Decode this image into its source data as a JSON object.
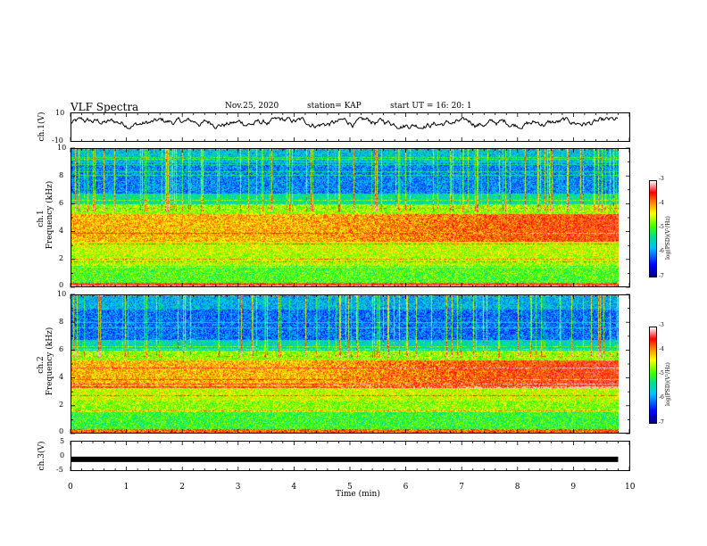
{
  "header": {
    "title": "VLF Spectra",
    "date": "Nov.25, 2020",
    "station": "station= KAP",
    "start_ut": "start  UT =   16: 20: 1"
  },
  "chart_data": [
    {
      "type": "line",
      "panel": "ch.1 waveform",
      "ylabel": "ch.1(V)",
      "ylim": [
        -10,
        10
      ],
      "ytick_labels": [
        "10",
        "-10"
      ],
      "xlim": [
        0,
        10
      ],
      "x_extent_min": 9.8,
      "approx_level": 3,
      "approx_swing": [
        -1,
        7
      ]
    },
    {
      "type": "heatmap",
      "panel": "ch.1 spectrogram",
      "ylabel_top": "ch.1",
      "ylabel": "Frequency (kHz)",
      "ylim": [
        0,
        10
      ],
      "ytick_labels": [
        "0",
        "2",
        "4",
        "6",
        "8",
        "10"
      ],
      "xlim": [
        0,
        10
      ],
      "x_extent_min": 9.8,
      "colorbar": {
        "label": "log(PSD)(V²/Hz)",
        "range": [
          -7,
          -3
        ],
        "tick_labels": [
          "-3",
          "-4",
          "-5",
          "-6",
          "-7"
        ]
      },
      "bands_log_psd": [
        {
          "f_khz": [
            0,
            0.3
          ],
          "value": -3.6
        },
        {
          "f_khz": [
            0.3,
            1.5
          ],
          "value": -4.9
        },
        {
          "f_khz": [
            1.5,
            2.4
          ],
          "value": -4.6
        },
        {
          "f_khz": [
            2.4,
            3.3
          ],
          "value": -4.5
        },
        {
          "f_khz": [
            3.3,
            5.3
          ],
          "value": -4.1,
          "late_value": -3.6
        },
        {
          "f_khz": [
            5.3,
            6.0
          ],
          "value": -4.7
        },
        {
          "f_khz": [
            6.0,
            6.8
          ],
          "value": -5.4
        },
        {
          "f_khz": [
            6.8,
            9.0
          ],
          "value": -6.0
        },
        {
          "f_khz": [
            9.0,
            10.0
          ],
          "value": -5.7
        }
      ]
    },
    {
      "type": "heatmap",
      "panel": "ch.2 spectrogram",
      "ylabel_top": "ch.2",
      "ylabel": "Frequency (kHz)",
      "ylim": [
        0,
        10
      ],
      "ytick_labels": [
        "0",
        "2",
        "4",
        "6",
        "8",
        "10"
      ],
      "xlim": [
        0,
        10
      ],
      "x_extent_min": 9.8,
      "colorbar": {
        "label": "log(PSD)(V²/Hz)",
        "range": [
          -7,
          -3
        ],
        "tick_labels": [
          "-3",
          "-4",
          "-5",
          "-6",
          "-7"
        ]
      },
      "bands_log_psd": [
        {
          "f_khz": [
            0,
            0.3
          ],
          "value": -3.8
        },
        {
          "f_khz": [
            0.3,
            1.5
          ],
          "value": -5.0
        },
        {
          "f_khz": [
            1.5,
            2.4
          ],
          "value": -4.7
        },
        {
          "f_khz": [
            2.4,
            3.3
          ],
          "value": -4.5
        },
        {
          "f_khz": [
            3.3,
            5.3
          ],
          "value": -4.1,
          "late_value": -3.5
        },
        {
          "f_khz": [
            5.3,
            6.0
          ],
          "value": -4.7
        },
        {
          "f_khz": [
            6.0,
            6.8
          ],
          "value": -5.5
        },
        {
          "f_khz": [
            6.8,
            9.0
          ],
          "value": -6.1
        },
        {
          "f_khz": [
            9.0,
            10.0
          ],
          "value": -5.8
        }
      ]
    },
    {
      "type": "line",
      "panel": "ch.3 waveform",
      "ylabel": "ch.3(V)",
      "ylim": [
        -5,
        5
      ],
      "ytick_labels": [
        "5",
        "0",
        "-5"
      ],
      "xlim": [
        0,
        10
      ],
      "x_extent_min": 9.8,
      "approx_level": -1.2,
      "xlabel": "Time (min)",
      "xtick_labels": [
        "0",
        "1",
        "2",
        "3",
        "4",
        "5",
        "6",
        "7",
        "8",
        "9",
        "10"
      ]
    }
  ]
}
